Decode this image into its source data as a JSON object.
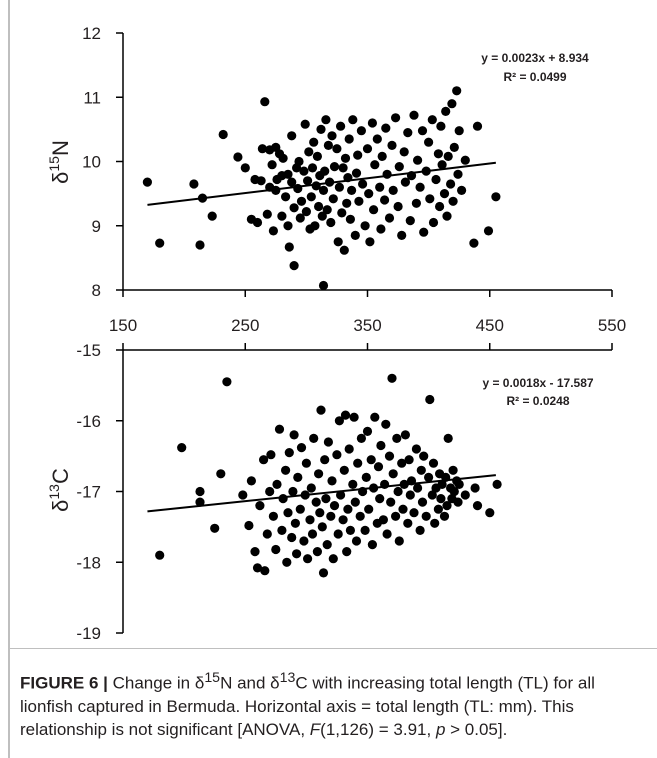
{
  "chart_data": [
    {
      "type": "scatter",
      "ylabel_base": "δ",
      "ylabel_sup": "15",
      "ylabel_elem": "N",
      "xticks": [
        "150",
        "250",
        "350",
        "450",
        "550"
      ],
      "yticks": [
        "8",
        "9",
        "10",
        "11",
        "12"
      ],
      "xlim": [
        150,
        550
      ],
      "ylim": [
        8,
        12
      ],
      "trendline": {
        "slope": 0.0023,
        "intercept": 8.934,
        "x_range": [
          170,
          455
        ]
      },
      "equation": "y = 0.0023x + 8.934",
      "r2": "R² = 0.0499",
      "points": [
        [
          170,
          9.68
        ],
        [
          180,
          8.73
        ],
        [
          208,
          9.65
        ],
        [
          213,
          8.7
        ],
        [
          215,
          9.43
        ],
        [
          223,
          9.15
        ],
        [
          232,
          10.42
        ],
        [
          244,
          10.07
        ],
        [
          250,
          9.9
        ],
        [
          255,
          9.1
        ],
        [
          258,
          9.72
        ],
        [
          260,
          9.05
        ],
        [
          263,
          9.7
        ],
        [
          264,
          10.2
        ],
        [
          266,
          10.93
        ],
        [
          268,
          9.18
        ],
        [
          270,
          9.6
        ],
        [
          270,
          10.18
        ],
        [
          272,
          9.95
        ],
        [
          273,
          8.92
        ],
        [
          275,
          9.55
        ],
        [
          275,
          10.22
        ],
        [
          276,
          9.72
        ],
        [
          278,
          10.12
        ],
        [
          280,
          9.15
        ],
        [
          280,
          9.78
        ],
        [
          281,
          10.05
        ],
        [
          283,
          9.45
        ],
        [
          285,
          9.8
        ],
        [
          285,
          9.0
        ],
        [
          286,
          8.67
        ],
        [
          288,
          9.68
        ],
        [
          288,
          10.4
        ],
        [
          290,
          8.38
        ],
        [
          290,
          9.28
        ],
        [
          292,
          9.9
        ],
        [
          293,
          9.58
        ],
        [
          294,
          10.0
        ],
        [
          295,
          9.12
        ],
        [
          296,
          9.38
        ],
        [
          298,
          9.85
        ],
        [
          299,
          10.58
        ],
        [
          300,
          9.22
        ],
        [
          301,
          9.7
        ],
        [
          302,
          10.15
        ],
        [
          303,
          8.95
        ],
        [
          304,
          9.45
        ],
        [
          305,
          9.9
        ],
        [
          306,
          10.3
        ],
        [
          307,
          9.0
        ],
        [
          308,
          9.62
        ],
        [
          309,
          10.08
        ],
        [
          310,
          9.3
        ],
        [
          311,
          9.78
        ],
        [
          312,
          10.5
        ],
        [
          313,
          9.15
        ],
        [
          314,
          8.07
        ],
        [
          314,
          9.55
        ],
        [
          315,
          9.85
        ],
        [
          316,
          10.65
        ],
        [
          317,
          9.25
        ],
        [
          318,
          10.25
        ],
        [
          319,
          9.68
        ],
        [
          320,
          9.05
        ],
        [
          321,
          10.4
        ],
        [
          322,
          9.42
        ],
        [
          323,
          9.92
        ],
        [
          325,
          10.2
        ],
        [
          326,
          8.75
        ],
        [
          327,
          9.6
        ],
        [
          328,
          10.55
        ],
        [
          329,
          9.2
        ],
        [
          330,
          9.9
        ],
        [
          331,
          8.62
        ],
        [
          332,
          10.05
        ],
        [
          333,
          9.35
        ],
        [
          334,
          9.75
        ],
        [
          335,
          10.35
        ],
        [
          336,
          9.1
        ],
        [
          337,
          9.55
        ],
        [
          338,
          10.65
        ],
        [
          340,
          8.85
        ],
        [
          341,
          9.82
        ],
        [
          342,
          10.1
        ],
        [
          343,
          9.38
        ],
        [
          345,
          10.48
        ],
        [
          346,
          9.65
        ],
        [
          348,
          9.0
        ],
        [
          350,
          10.2
        ],
        [
          351,
          9.5
        ],
        [
          352,
          8.75
        ],
        [
          354,
          10.6
        ],
        [
          355,
          9.25
        ],
        [
          356,
          9.95
        ],
        [
          358,
          10.35
        ],
        [
          360,
          9.6
        ],
        [
          361,
          8.95
        ],
        [
          362,
          10.08
        ],
        [
          364,
          9.4
        ],
        [
          365,
          10.52
        ],
        [
          366,
          9.8
        ],
        [
          368,
          9.12
        ],
        [
          370,
          10.25
        ],
        [
          371,
          9.55
        ],
        [
          373,
          10.68
        ],
        [
          375,
          9.3
        ],
        [
          376,
          9.92
        ],
        [
          378,
          8.85
        ],
        [
          380,
          10.15
        ],
        [
          381,
          9.68
        ],
        [
          383,
          10.45
        ],
        [
          385,
          9.08
        ],
        [
          386,
          9.78
        ],
        [
          388,
          10.72
        ],
        [
          390,
          9.35
        ],
        [
          391,
          10.02
        ],
        [
          393,
          9.6
        ],
        [
          395,
          10.48
        ],
        [
          396,
          8.9
        ],
        [
          398,
          9.85
        ],
        [
          400,
          10.3
        ],
        [
          401,
          9.42
        ],
        [
          403,
          10.65
        ],
        [
          404,
          9.05
        ],
        [
          406,
          9.72
        ],
        [
          408,
          10.12
        ],
        [
          409,
          9.3
        ],
        [
          410,
          10.55
        ],
        [
          411,
          9.95
        ],
        [
          413,
          9.5
        ],
        [
          414,
          10.78
        ],
        [
          415,
          9.15
        ],
        [
          416,
          10.08
        ],
        [
          418,
          9.65
        ],
        [
          419,
          10.9
        ],
        [
          420,
          9.38
        ],
        [
          421,
          10.22
        ],
        [
          423,
          11.1
        ],
        [
          424,
          9.8
        ],
        [
          425,
          10.48
        ],
        [
          427,
          9.55
        ],
        [
          430,
          10.02
        ],
        [
          437,
          8.73
        ],
        [
          440,
          10.55
        ],
        [
          449,
          8.92
        ],
        [
          455,
          9.45
        ]
      ]
    },
    {
      "type": "scatter",
      "ylabel_base": "δ",
      "ylabel_sup": "13",
      "ylabel_elem": "C",
      "yticks": [
        "-15",
        "-16",
        "-17",
        "-18",
        "-19"
      ],
      "xlim": [
        150,
        550
      ],
      "ylim": [
        -19,
        -15
      ],
      "trendline": {
        "slope": 0.0018,
        "intercept": -17.587,
        "x_range": [
          170,
          455
        ]
      },
      "equation": "y = 0.0018x - 17.587",
      "r2": "R² = 0.0248",
      "points": [
        [
          180,
          -17.9
        ],
        [
          198,
          -16.38
        ],
        [
          213,
          -17.0
        ],
        [
          213,
          -17.15
        ],
        [
          225,
          -17.52
        ],
        [
          230,
          -16.75
        ],
        [
          235,
          -15.45
        ],
        [
          248,
          -17.05
        ],
        [
          253,
          -17.48
        ],
        [
          255,
          -16.85
        ],
        [
          258,
          -17.85
        ],
        [
          260,
          -18.08
        ],
        [
          262,
          -17.2
        ],
        [
          265,
          -16.55
        ],
        [
          266,
          -18.12
        ],
        [
          268,
          -17.6
        ],
        [
          270,
          -17.0
        ],
        [
          271,
          -16.48
        ],
        [
          273,
          -17.35
        ],
        [
          275,
          -17.82
        ],
        [
          276,
          -16.9
        ],
        [
          278,
          -16.12
        ],
        [
          280,
          -17.55
        ],
        [
          281,
          -17.1
        ],
        [
          283,
          -16.7
        ],
        [
          284,
          -18.0
        ],
        [
          285,
          -17.3
        ],
        [
          286,
          -16.45
        ],
        [
          288,
          -17.65
        ],
        [
          289,
          -17.0
        ],
        [
          290,
          -16.2
        ],
        [
          291,
          -17.45
        ],
        [
          292,
          -17.88
        ],
        [
          293,
          -16.8
        ],
        [
          295,
          -17.25
        ],
        [
          296,
          -16.38
        ],
        [
          298,
          -17.7
        ],
        [
          299,
          -17.05
        ],
        [
          300,
          -16.6
        ],
        [
          301,
          -17.95
        ],
        [
          303,
          -17.4
        ],
        [
          304,
          -16.95
        ],
        [
          305,
          -17.6
        ],
        [
          306,
          -16.25
        ],
        [
          308,
          -17.15
        ],
        [
          309,
          -17.85
        ],
        [
          310,
          -16.75
        ],
        [
          311,
          -17.3
        ],
        [
          312,
          -15.85
        ],
        [
          313,
          -17.5
        ],
        [
          314,
          -18.15
        ],
        [
          315,
          -16.55
        ],
        [
          316,
          -17.1
        ],
        [
          317,
          -17.75
        ],
        [
          318,
          -16.3
        ],
        [
          320,
          -17.35
        ],
        [
          321,
          -16.85
        ],
        [
          322,
          -17.95
        ],
        [
          323,
          -17.2
        ],
        [
          325,
          -16.48
        ],
        [
          326,
          -17.6
        ],
        [
          327,
          -16.0
        ],
        [
          328,
          -17.05
        ],
        [
          330,
          -17.4
        ],
        [
          331,
          -16.7
        ],
        [
          332,
          -15.92
        ],
        [
          333,
          -17.85
        ],
        [
          334,
          -17.25
        ],
        [
          335,
          -16.4
        ],
        [
          336,
          -17.55
        ],
        [
          338,
          -16.9
        ],
        [
          339,
          -15.95
        ],
        [
          340,
          -17.15
        ],
        [
          341,
          -17.7
        ],
        [
          342,
          -16.6
        ],
        [
          344,
          -17.35
        ],
        [
          345,
          -16.25
        ],
        [
          346,
          -17.0
        ],
        [
          348,
          -17.55
        ],
        [
          349,
          -16.8
        ],
        [
          350,
          -16.15
        ],
        [
          351,
          -17.25
        ],
        [
          353,
          -16.55
        ],
        [
          354,
          -17.75
        ],
        [
          355,
          -16.95
        ],
        [
          356,
          -15.95
        ],
        [
          358,
          -17.45
        ],
        [
          359,
          -16.65
        ],
        [
          360,
          -17.1
        ],
        [
          361,
          -16.35
        ],
        [
          363,
          -17.4
        ],
        [
          364,
          -16.9
        ],
        [
          365,
          -16.05
        ],
        [
          366,
          -17.6
        ],
        [
          368,
          -16.5
        ],
        [
          369,
          -17.15
        ],
        [
          370,
          -15.4
        ],
        [
          371,
          -16.75
        ],
        [
          373,
          -17.35
        ],
        [
          374,
          -16.25
        ],
        [
          375,
          -17.0
        ],
        [
          376,
          -17.7
        ],
        [
          378,
          -16.6
        ],
        [
          379,
          -17.25
        ],
        [
          380,
          -16.9
        ],
        [
          381,
          -16.2
        ],
        [
          383,
          -17.45
        ],
        [
          384,
          -16.55
        ],
        [
          385,
          -17.05
        ],
        [
          386,
          -16.85
        ],
        [
          388,
          -17.3
        ],
        [
          390,
          -16.4
        ],
        [
          391,
          -16.95
        ],
        [
          393,
          -17.55
        ],
        [
          394,
          -16.7
        ],
        [
          395,
          -17.15
        ],
        [
          396,
          -16.5
        ],
        [
          398,
          -17.35
        ],
        [
          400,
          -16.8
        ],
        [
          401,
          -15.7
        ],
        [
          403,
          -17.05
        ],
        [
          404,
          -16.6
        ],
        [
          405,
          -17.45
        ],
        [
          406,
          -16.95
        ],
        [
          408,
          -17.25
        ],
        [
          409,
          -16.75
        ],
        [
          410,
          -17.1
        ],
        [
          411,
          -16.9
        ],
        [
          413,
          -17.35
        ],
        [
          414,
          -16.8
        ],
        [
          415,
          -17.2
        ],
        [
          416,
          -16.25
        ],
        [
          418,
          -16.95
        ],
        [
          419,
          -17.1
        ],
        [
          420,
          -16.7
        ],
        [
          421,
          -17.0
        ],
        [
          423,
          -16.85
        ],
        [
          424,
          -17.15
        ],
        [
          425,
          -16.9
        ],
        [
          430,
          -17.05
        ],
        [
          438,
          -16.95
        ],
        [
          440,
          -17.2
        ],
        [
          450,
          -17.3
        ],
        [
          456,
          -16.9
        ]
      ]
    }
  ],
  "caption": {
    "label": "FIGURE 6 |",
    "t1": " Change in δ",
    "sup1": "15",
    "t2": "N and δ",
    "sup2": "13",
    "t3": "C with increasing total length (TL) for all lionfish captured in Bermuda. Horizontal axis = total length (TL: mm). This relationship is not significant [ANOVA, ",
    "f_italic": "F",
    "t4": "(1,126) = 3.91, ",
    "p_italic": "p",
    "t5": " > 0.05]."
  }
}
